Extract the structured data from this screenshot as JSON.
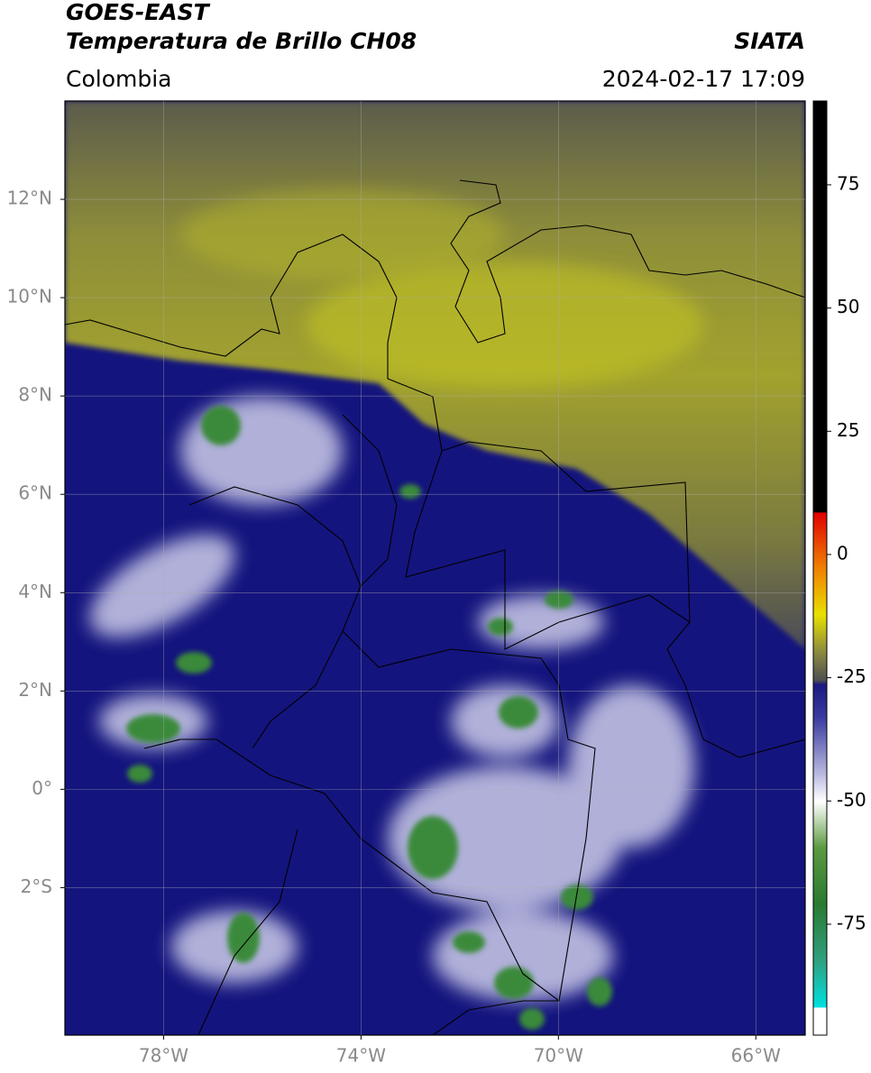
{
  "header": {
    "title": "GOES-EAST",
    "subtitle": "Temperatura de Brillo CH08",
    "source": "SIATA",
    "region": "Colombia",
    "timestamp": "2024-02-17 17:09"
  },
  "map": {
    "lon_range": [
      -80,
      -65
    ],
    "lat_range": [
      -5,
      14
    ],
    "lat_ticks": [
      {
        "value": 12,
        "label": "12°N"
      },
      {
        "value": 10,
        "label": "10°N"
      },
      {
        "value": 8,
        "label": "8°N"
      },
      {
        "value": 6,
        "label": "6°N"
      },
      {
        "value": 4,
        "label": "4°N"
      },
      {
        "value": 2,
        "label": "2°N"
      },
      {
        "value": 0,
        "label": "0°"
      },
      {
        "value": -2,
        "label": "2°S"
      }
    ],
    "lon_ticks": [
      {
        "value": -78,
        "label": "78°W"
      },
      {
        "value": -74,
        "label": "74°W"
      },
      {
        "value": -70,
        "label": "70°W"
      },
      {
        "value": -66,
        "label": "66°W"
      }
    ]
  },
  "colorbar": {
    "range": [
      -97.5,
      92
    ],
    "ticks": [
      75,
      50,
      25,
      0,
      -25,
      -50,
      -75
    ]
  }
}
